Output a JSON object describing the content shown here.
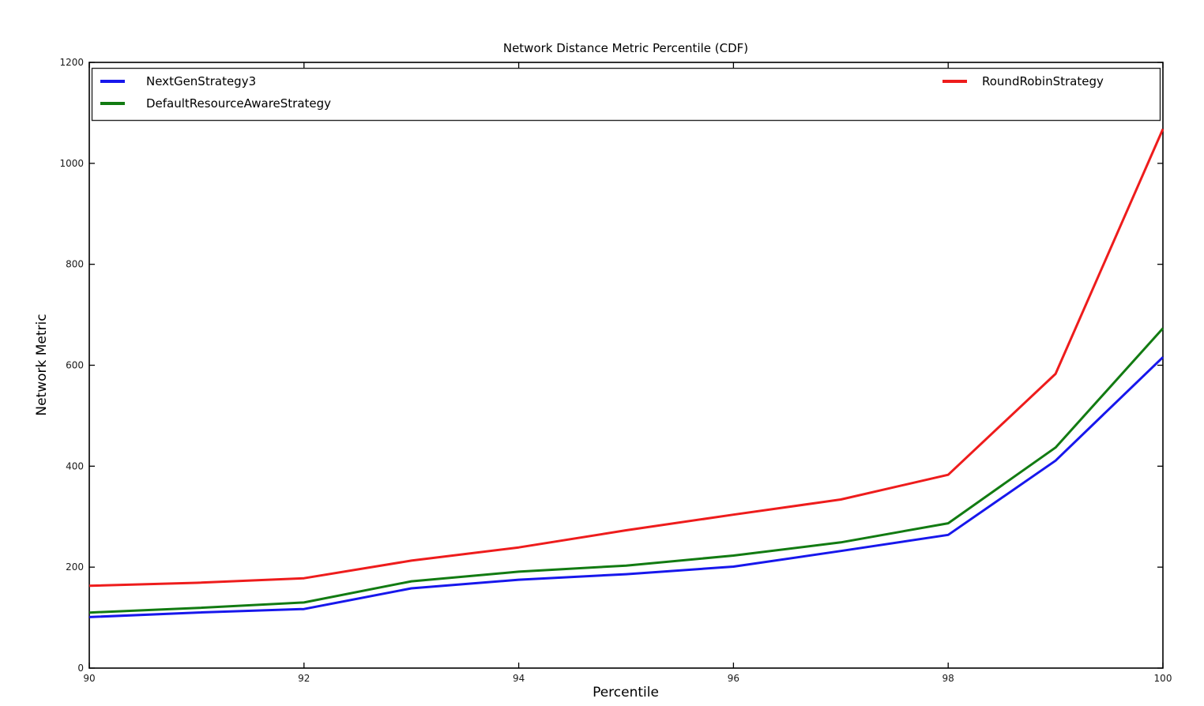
{
  "chart_data": {
    "type": "line",
    "title": "Network Distance Metric Percentile (CDF)",
    "xlabel": "Percentile",
    "ylabel": "Network Metric",
    "xlim": [
      90,
      100
    ],
    "ylim": [
      0,
      1200
    ],
    "xticks": [
      90,
      92,
      94,
      96,
      98,
      100
    ],
    "yticks": [
      0,
      200,
      400,
      600,
      800,
      1000,
      1200
    ],
    "grid": false,
    "legend_position": "top-inside, full-width box, 2 columns",
    "x": [
      90,
      91,
      92,
      93,
      94,
      95,
      96,
      97,
      98,
      99,
      100
    ],
    "series": [
      {
        "name": "NextGenStrategy3",
        "color": "#1717ec",
        "values": [
          101,
          110,
          117,
          158,
          175,
          186,
          201,
          232,
          264,
          411,
          616
        ]
      },
      {
        "name": "DefaultResourceAwareStrategy",
        "color": "#127b12",
        "values": [
          110,
          119,
          130,
          172,
          191,
          203,
          223,
          249,
          287,
          437,
          673
        ]
      },
      {
        "name": "RoundRobinStrategy",
        "color": "#ee1c1c",
        "values": [
          163,
          169,
          178,
          213,
          239,
          273,
          304,
          334,
          383,
          583,
          1068
        ]
      }
    ]
  }
}
